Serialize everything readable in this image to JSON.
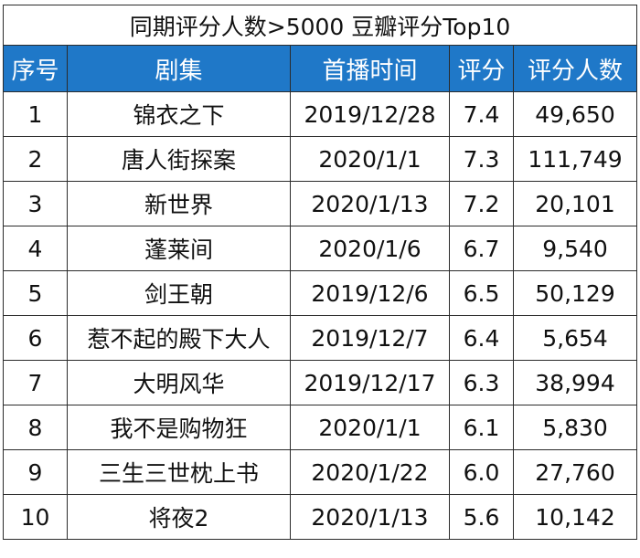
{
  "table": {
    "title": "同期评分人数>5000 豆瓣评分Top10",
    "headers": [
      "序号",
      "剧集",
      "首播时间",
      "评分",
      "评分人数"
    ],
    "rows": [
      {
        "rank": "1",
        "name": "锦衣之下",
        "date": "2019/12/28",
        "score": "7.4",
        "votes": "49,650"
      },
      {
        "rank": "2",
        "name": "唐人街探案",
        "date": "2020/1/1",
        "score": "7.3",
        "votes": "111,749"
      },
      {
        "rank": "3",
        "name": "新世界",
        "date": "2020/1/13",
        "score": "7.2",
        "votes": "20,101"
      },
      {
        "rank": "4",
        "name": "蓬莱间",
        "date": "2020/1/6",
        "score": "6.7",
        "votes": "9,540"
      },
      {
        "rank": "5",
        "name": "剑王朝",
        "date": "2019/12/6",
        "score": "6.5",
        "votes": "50,129"
      },
      {
        "rank": "6",
        "name": "惹不起的殿下大人",
        "date": "2019/12/7",
        "score": "6.4",
        "votes": "5,654"
      },
      {
        "rank": "7",
        "name": "大明风华",
        "date": "2019/12/17",
        "score": "6.3",
        "votes": "38,994"
      },
      {
        "rank": "8",
        "name": "我不是购物狂",
        "date": "2020/1/1",
        "score": "6.1",
        "votes": "5,830"
      },
      {
        "rank": "9",
        "name": "三生三世枕上书",
        "date": "2020/1/22",
        "score": "6.0",
        "votes": "27,760"
      },
      {
        "rank": "10",
        "name": "将夜2",
        "date": "2020/1/13",
        "score": "5.6",
        "votes": "10,142"
      }
    ]
  },
  "colors": {
    "header_bg": "#1f78c8",
    "header_text": "#ffffff",
    "border": "#2b2b2b"
  }
}
